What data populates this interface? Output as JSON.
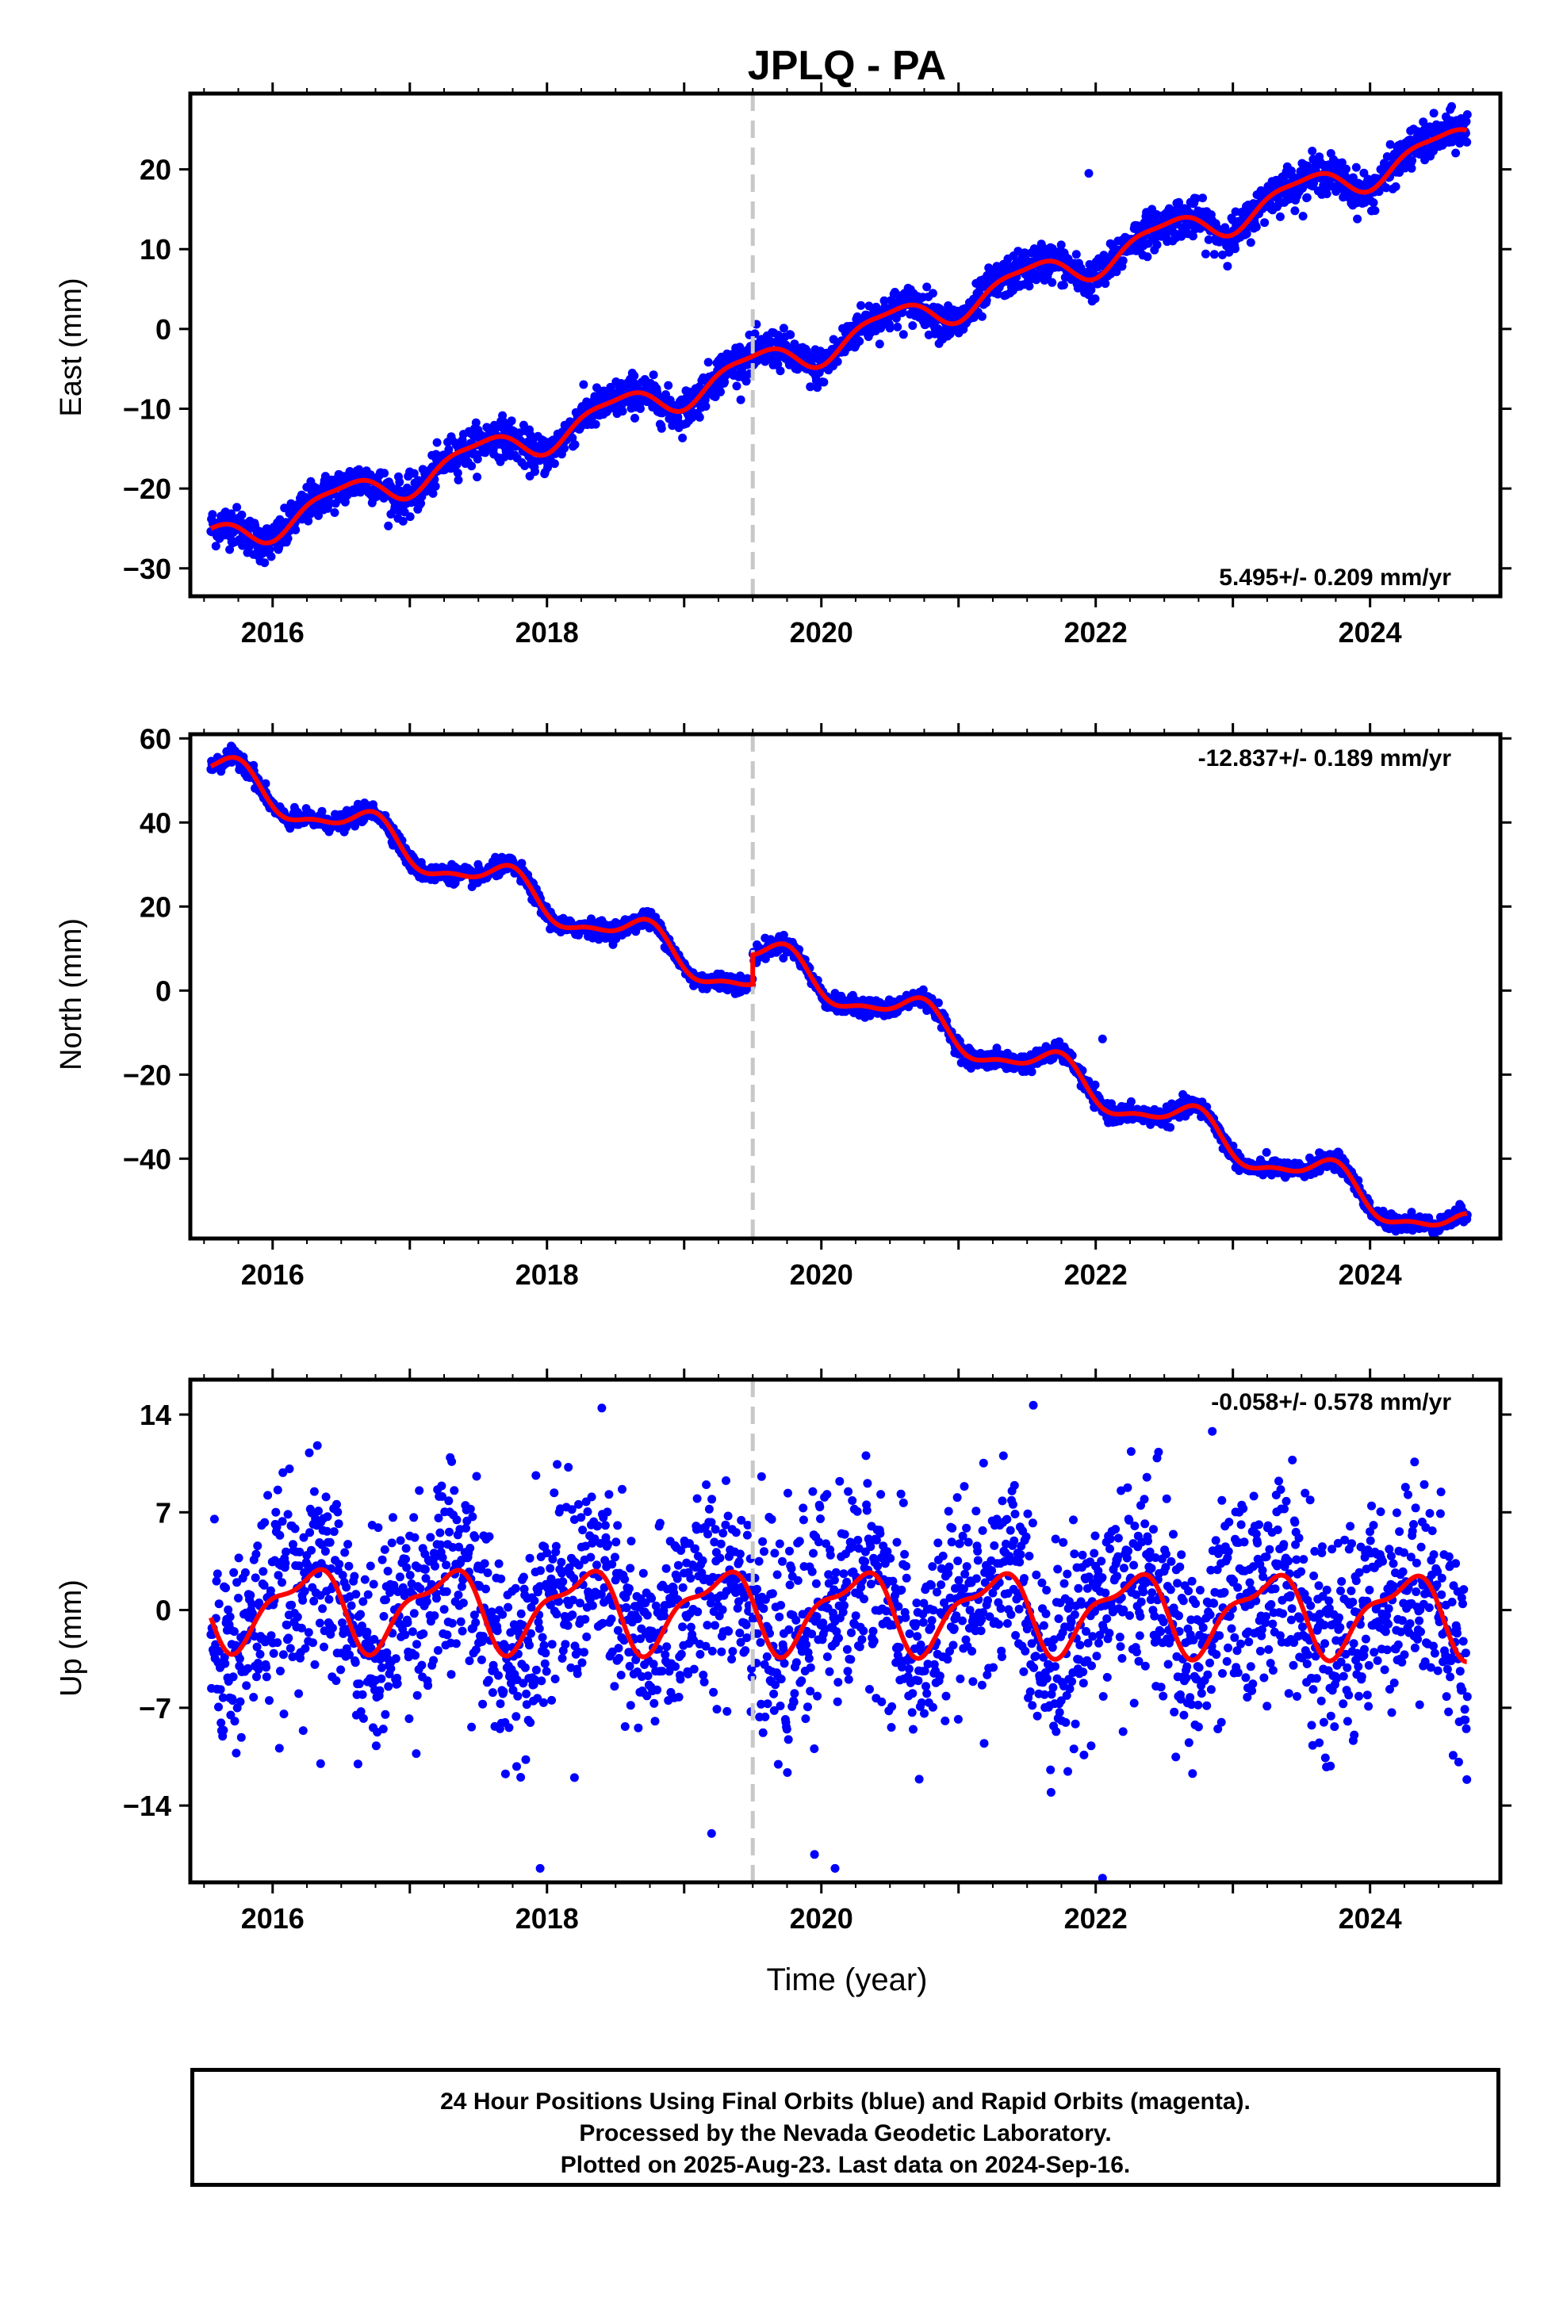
{
  "title": "JPLQ - PA",
  "x_axis_label": "Time (year)",
  "footer": {
    "line1": "24 Hour Positions Using Final Orbits (blue) and Rapid Orbits (magenta).",
    "line2": "Processed by the Nevada Geodetic Laboratory.",
    "line3": "Plotted on 2025-Aug-23. Last data on 2024-Sep-16."
  },
  "colors": {
    "points": "#0000ff",
    "model": "#ff0000",
    "event_line": "#c8c8c8",
    "frame": "#000000"
  },
  "chart_data": [
    {
      "type": "scatter",
      "panel": "east",
      "ylabel": "East (mm)",
      "xlim": [
        2015.4,
        2024.95
      ],
      "ylim": [
        -33.5,
        29.5
      ],
      "x_ticks": [
        "2016",
        "2018",
        "2020",
        "2022",
        "2024"
      ],
      "y_ticks": [
        "20",
        "10",
        "0",
        "−10",
        "−20",
        "−30"
      ],
      "y_tick_values": [
        20,
        10,
        0,
        -10,
        -20,
        -30
      ],
      "rate_label": "5.495+/- 0.209 mm/yr",
      "rate_position": "bottom-right",
      "event_line_x": 2019.5,
      "data_span": [
        2015.55,
        2024.71
      ],
      "trend": {
        "slope": 5.495,
        "intercept_at_2020": -2.1,
        "jump_at_event": 0
      },
      "seasonal": {
        "annual_amp": 2.0,
        "annual_phase": 0.25,
        "semiannual_amp": 0.6,
        "semiannual_phase": 0.1
      },
      "scatter_sigma": 1.2,
      "outliers": [
        [
          2021.95,
          19.5
        ]
      ]
    },
    {
      "type": "scatter",
      "panel": "north",
      "ylabel": "North (mm)",
      "xlim": [
        2015.4,
        2024.95
      ],
      "ylim": [
        -59,
        61
      ],
      "x_ticks": [
        "2016",
        "2018",
        "2020",
        "2022",
        "2024"
      ],
      "y_ticks": [
        "60",
        "40",
        "20",
        "0",
        "−20",
        "−40"
      ],
      "y_tick_values": [
        60,
        40,
        20,
        0,
        -20,
        -40
      ],
      "rate_label": "-12.837+/- 0.189 mm/yr",
      "rate_position": "top-right",
      "event_line_x": 2019.5,
      "data_span": [
        2015.55,
        2024.71
      ],
      "trend": {
        "slope": -12.837,
        "intercept_at_2020": 2.2,
        "jump_at_event": 7
      },
      "seasonal": {
        "annual_amp": 4.2,
        "annual_phase": 0.45,
        "semiannual_amp": 1.5,
        "semiannual_phase": 0.15
      },
      "scatter_sigma": 1.0,
      "outliers": [
        [
          2022.05,
          -11.5
        ],
        [
          2019.3,
          0.5
        ]
      ]
    },
    {
      "type": "scatter",
      "panel": "up",
      "ylabel": "Up (mm)",
      "xlim": [
        2015.4,
        2024.95
      ],
      "ylim": [
        -19.5,
        16.5
      ],
      "x_ticks": [
        "2016",
        "2018",
        "2020",
        "2022",
        "2024"
      ],
      "y_ticks": [
        "14",
        "7",
        "0",
        "−7",
        "−14"
      ],
      "y_tick_values": [
        14,
        7,
        0,
        -7,
        -14
      ],
      "rate_label": "-0.058+/- 0.578 mm/yr",
      "rate_position": "top-right",
      "event_line_x": 2019.5,
      "data_span": [
        2015.55,
        2024.71
      ],
      "trend": {
        "slope": -0.058,
        "intercept_at_2020": 0,
        "jump_at_event": 0
      },
      "seasonal": {
        "annual_amp": 2.6,
        "annual_phase": 0.0,
        "semiannual_amp": 1.0,
        "semiannual_phase": 0.3
      },
      "scatter_sigma": 3.6,
      "outliers": [
        [
          2017.95,
          -18.5
        ],
        [
          2022.05,
          -19.2
        ],
        [
          2019.95,
          -17.5
        ],
        [
          2020.1,
          -18.5
        ],
        [
          2019.2,
          -16
        ],
        [
          2022.85,
          12.8
        ],
        [
          2016.35,
          -11
        ],
        [
          2018.2,
          -12
        ]
      ]
    }
  ]
}
